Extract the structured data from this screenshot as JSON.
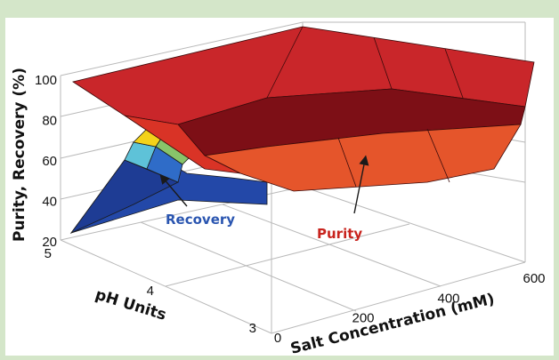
{
  "chart_data": {
    "type": "surface",
    "title": "",
    "xlabel": "Salt Concentration (mM)",
    "ylabel": "pH Units",
    "zlabel": "Purity, Recovery (%)",
    "x_ticks": [
      "0",
      "200",
      "400",
      "600"
    ],
    "y_ticks": [
      "3",
      "4",
      "5"
    ],
    "z_ticks": [
      "20",
      "40",
      "60",
      "80",
      "100"
    ],
    "xlim": [
      0,
      600
    ],
    "ylim": [
      3,
      5
    ],
    "zlim": [
      20,
      100
    ],
    "grid": true,
    "series": [
      {
        "name": "Purity",
        "color": "#d62a2a",
        "points": [
          {
            "salt": 0,
            "ph": 5,
            "value": 99
          },
          {
            "salt": 600,
            "ph": 5,
            "value": 99
          },
          {
            "salt": 0,
            "ph": 3,
            "value": 98
          },
          {
            "salt": 200,
            "ph": 3,
            "value": 98
          },
          {
            "salt": 400,
            "ph": 3,
            "value": 97
          },
          {
            "salt": 600,
            "ph": 3,
            "value": 97
          },
          {
            "salt": 600,
            "ph": 4,
            "value": 62
          },
          {
            "salt": 400,
            "ph": 4,
            "value": 55
          },
          {
            "salt": 200,
            "ph": 4,
            "value": 50
          }
        ]
      },
      {
        "name": "Recovery",
        "color": "#2f5fb7",
        "points": [
          {
            "salt": 0,
            "ph": 5,
            "value": 22
          },
          {
            "salt": 0,
            "ph": 4,
            "value": 78
          },
          {
            "salt": 100,
            "ph": 4,
            "value": 72
          },
          {
            "salt": 200,
            "ph": 4,
            "value": 60
          }
        ]
      }
    ],
    "annotations": [
      {
        "text": "Recovery",
        "color": "#2a55b0"
      },
      {
        "text": "Purity",
        "color": "#c8241e"
      }
    ]
  }
}
